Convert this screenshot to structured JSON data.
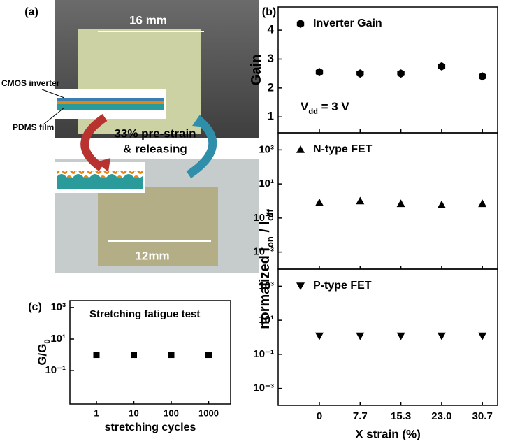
{
  "photo": {
    "label": "(a)",
    "top_width": "16 mm",
    "layer_top": "CMOS inverter",
    "layer_bottom": "PDMS film",
    "process": [
      "33% pre-strain",
      "& releasing"
    ],
    "bottom_width": "12mm"
  },
  "chart_data": [
    {
      "type": "scatter",
      "panel_label": "(b)",
      "log": false,
      "legend": "upper left",
      "series": [
        {
          "name": "Inverter Gain",
          "marker": "hexagon",
          "color": "#000000",
          "values": [
            2.55,
            2.5,
            2.5,
            2.75,
            2.4
          ]
        }
      ],
      "y_label": [
        {
          "text": "Gain"
        }
      ],
      "ylim": [
        0.45,
        4.8
      ],
      "yticks": [
        1,
        2,
        3,
        4
      ],
      "annotation": [
        {
          "text": "V"
        },
        {
          "text": "dd",
          "sub": true
        },
        {
          "text": " = 3 V"
        }
      ]
    },
    {
      "type": "scatter",
      "log": true,
      "legend": "upper left",
      "series": [
        {
          "name": "N-type FET",
          "marker": "triangle-up",
          "color": "#000000",
          "values": [
            0.8,
            1.0,
            0.7,
            0.6,
            0.7
          ]
        }
      ],
      "y_label": [
        {
          "text": "normalized I"
        },
        {
          "text": "on",
          "sub": true
        },
        {
          "text": " / I"
        },
        {
          "text": "off",
          "sub": true
        }
      ],
      "ylim": [
        0.0001,
        10000
      ],
      "yticks": [
        {
          "value": 1000,
          "label": "10³"
        },
        {
          "value": 10,
          "label": "10¹"
        },
        {
          "value": 0.1,
          "label": "10⁻¹"
        },
        {
          "value": 0.001,
          "label": "10⁻³"
        }
      ]
    },
    {
      "type": "scatter",
      "log": true,
      "legend": "upper left",
      "categories": [
        "0",
        "7.7",
        "15.3",
        "23.0",
        "30.7"
      ],
      "x_label": "X strain (%)",
      "series": [
        {
          "name": "P-type FET",
          "marker": "triangle-down",
          "color": "#000000",
          "values": [
            1.2,
            1.2,
            1.2,
            1.2,
            1.2
          ]
        }
      ],
      "ylim": [
        0.0001,
        10000
      ],
      "yticks": [
        {
          "value": 1000,
          "label": "10³"
        },
        {
          "value": 10,
          "label": "10¹"
        },
        {
          "value": 0.1,
          "label": "10⁻¹"
        },
        {
          "value": 0.001,
          "label": "10⁻³"
        }
      ]
    },
    {
      "type": "scatter",
      "panel_label": "(c)",
      "log": true,
      "title": "Stretching fatigue test",
      "categories": [
        "1",
        "10",
        "100",
        "1000"
      ],
      "x_label": "stretching cycles",
      "series": [
        {
          "marker": "square",
          "color": "#000000",
          "values": [
            1,
            1,
            1,
            1
          ]
        }
      ],
      "y_label": [
        {
          "text": "G/G"
        },
        {
          "text": "0",
          "sub": true
        }
      ],
      "ylim": [
        0.00075,
        2750
      ],
      "yticks": [
        {
          "value": 1000,
          "label": "10³"
        },
        {
          "value": 10,
          "label": "10¹"
        },
        {
          "value": 0.1,
          "label": "10⁻¹"
        }
      ]
    }
  ]
}
